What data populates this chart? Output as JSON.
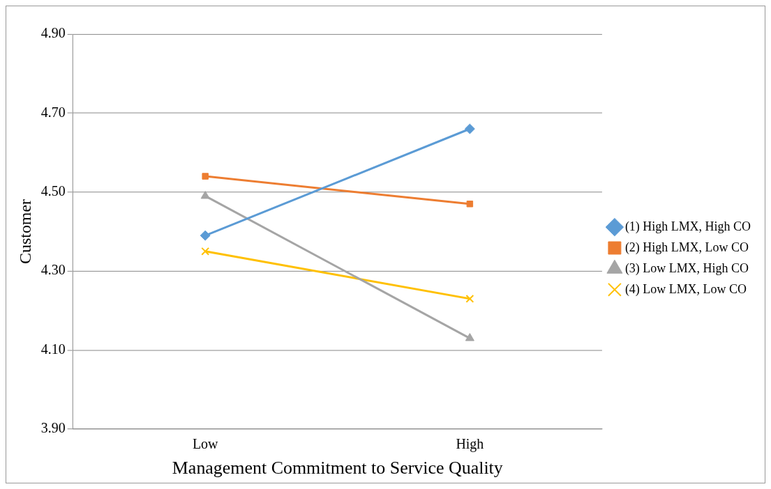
{
  "chart_data": {
    "type": "line",
    "xlabel": "Management Commitment to Service Quality",
    "ylabel": "Customer",
    "categories": [
      "Low",
      "High"
    ],
    "series": [
      {
        "name": "(1) High LMX, High CO",
        "color": "#5b9bd5",
        "marker": "diamond",
        "values": [
          4.39,
          4.66
        ]
      },
      {
        "name": "(2) High LMX, Low CO",
        "color": "#ed7d31",
        "marker": "square",
        "values": [
          4.54,
          4.47
        ]
      },
      {
        "name": "(3) Low LMX, High CO",
        "color": "#a5a5a5",
        "marker": "triangle",
        "values": [
          4.49,
          4.13
        ]
      },
      {
        "name": "(4) Low LMX, Low CO",
        "color": "#ffc000",
        "marker": "cross",
        "values": [
          4.35,
          4.23
        ]
      }
    ],
    "ylim": [
      3.9,
      4.9
    ],
    "yticks": [
      {
        "value": 3.9,
        "label": "3.90"
      },
      {
        "value": 4.1,
        "label": "4.10"
      },
      {
        "value": 4.3,
        "label": "4.30"
      },
      {
        "value": 4.5,
        "label": "4.50"
      },
      {
        "value": 4.7,
        "label": "4.70"
      },
      {
        "value": 4.9,
        "label": "4.90"
      }
    ],
    "grid": "y",
    "legend": "right"
  }
}
